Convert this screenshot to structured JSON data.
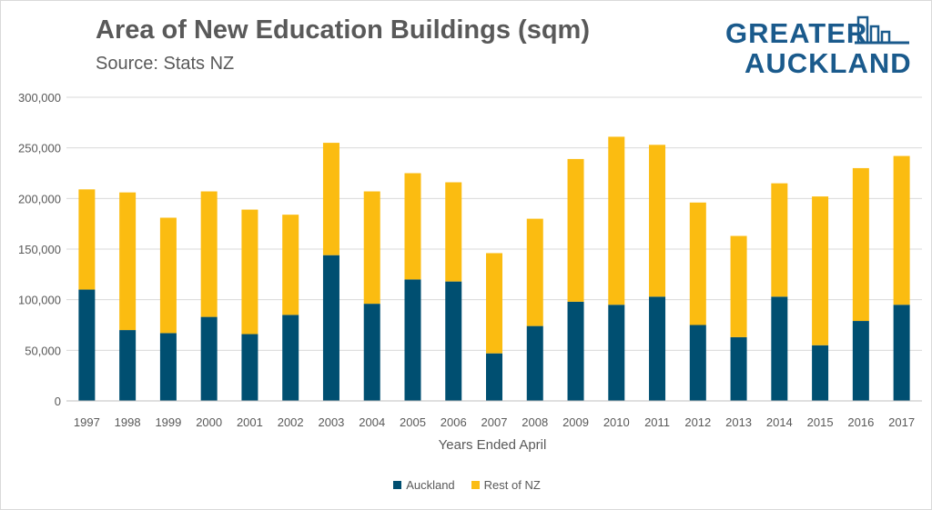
{
  "chart_data": {
    "type": "bar",
    "stacked": true,
    "title": "Area of New Education Buildings (sqm)",
    "subtitle": "Source: Stats NZ",
    "xlabel": "Years Ended April",
    "ylabel": "",
    "ylim": [
      0,
      300000
    ],
    "yticks": [
      0,
      50000,
      100000,
      150000,
      200000,
      250000,
      300000
    ],
    "ytick_labels": [
      "0",
      "50,000",
      "100,000",
      "150,000",
      "200,000",
      "250,000",
      "300,000"
    ],
    "grid": true,
    "legend_position": "bottom",
    "categories": [
      "1997",
      "1998",
      "1999",
      "2000",
      "2001",
      "2002",
      "2003",
      "2004",
      "2005",
      "2006",
      "2007",
      "2008",
      "2009",
      "2010",
      "2011",
      "2012",
      "2013",
      "2014",
      "2015",
      "2016",
      "2017"
    ],
    "series": [
      {
        "name": "Auckland",
        "color": "#004f71",
        "values": [
          110000,
          70000,
          67000,
          83000,
          66000,
          85000,
          144000,
          96000,
          120000,
          118000,
          47000,
          74000,
          98000,
          95000,
          103000,
          75000,
          63000,
          103000,
          55000,
          79000,
          95000
        ]
      },
      {
        "name": "Rest of NZ",
        "color": "#fbbc11",
        "values": [
          99000,
          136000,
          114000,
          124000,
          123000,
          99000,
          111000,
          111000,
          105000,
          98000,
          99000,
          106000,
          141000,
          166000,
          150000,
          121000,
          100000,
          112000,
          147000,
          151000,
          147000
        ]
      }
    ]
  },
  "logo": {
    "line1": "GREATER",
    "line2": "AUCKLAND",
    "color": "#1a5a8c",
    "icon": "city-skyline-icon"
  },
  "colors": {
    "text": "#595959",
    "gridline": "#d9d9d9",
    "axis": "#bfbfbf"
  }
}
